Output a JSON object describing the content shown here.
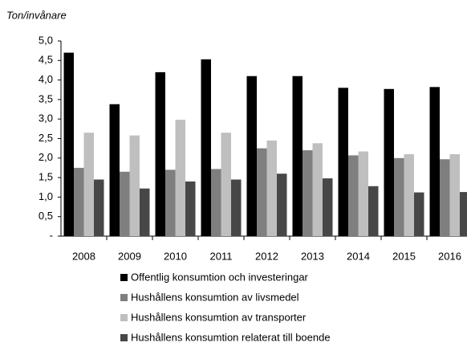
{
  "chart_data": {
    "type": "bar",
    "ylabel": "Ton/invånare",
    "categories": [
      "2008",
      "2009",
      "2010",
      "2011",
      "2012",
      "2013",
      "2014",
      "2015",
      "2016"
    ],
    "series": [
      {
        "name": "Offentlig konsumtion och investeringar",
        "color": "#000000",
        "values": [
          4.7,
          3.38,
          4.2,
          4.53,
          4.1,
          4.1,
          3.8,
          3.77,
          3.82
        ]
      },
      {
        "name": "Hushållens konsumtion av livsmedel",
        "color": "#7f7f7f",
        "values": [
          1.75,
          1.65,
          1.7,
          1.72,
          2.25,
          2.2,
          2.07,
          2.0,
          1.97
        ]
      },
      {
        "name": "Hushållens konsumtion av transporter",
        "color": "#bfbfbf",
        "values": [
          2.65,
          2.58,
          2.98,
          2.65,
          2.45,
          2.38,
          2.17,
          2.1,
          2.1
        ]
      },
      {
        "name": "Hushållens konsumtion relaterat till boende",
        "color": "#474747",
        "values": [
          1.45,
          1.22,
          1.4,
          1.45,
          1.6,
          1.48,
          1.28,
          1.12,
          1.13
        ]
      }
    ],
    "ylim": [
      0,
      5
    ],
    "yticks": [
      {
        "value": 0,
        "label": "-"
      },
      {
        "value": 0.5,
        "label": "0,5"
      },
      {
        "value": 1,
        "label": "1,0"
      },
      {
        "value": 1.5,
        "label": "1,5"
      },
      {
        "value": 2,
        "label": "2,0"
      },
      {
        "value": 2.5,
        "label": "2,5"
      },
      {
        "value": 3,
        "label": "3,0"
      },
      {
        "value": 3.5,
        "label": "3,5"
      },
      {
        "value": 4,
        "label": "4,0"
      },
      {
        "value": 4.5,
        "label": "4,5"
      },
      {
        "value": 5,
        "label": "5,0"
      }
    ],
    "grid": false,
    "legend": "bottom"
  }
}
